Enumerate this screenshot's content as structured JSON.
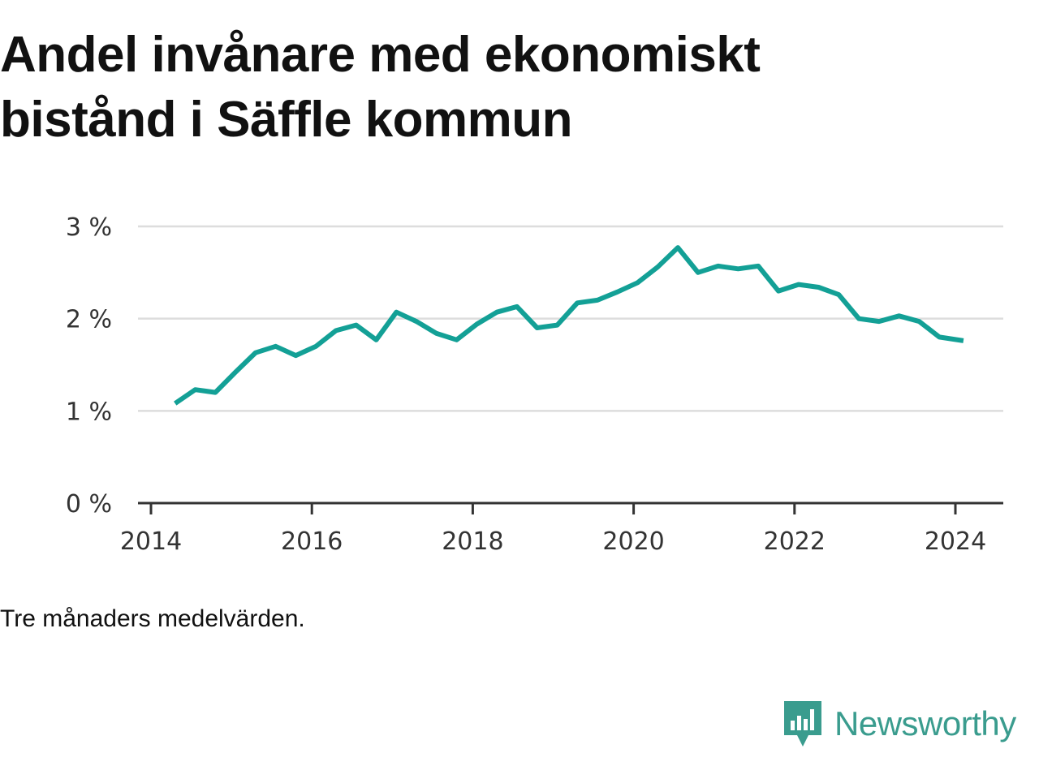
{
  "title": {
    "line1": "Andel invånare med ekonomiskt",
    "line2": "bistånd i Säffle kommun"
  },
  "note": "Tre månaders medelvärden.",
  "brand": {
    "name": "Newsworthy",
    "icon": "newsworthy-logo-icon",
    "color": "#3a9c8e"
  },
  "colors": {
    "line": "#13a096",
    "grid": "#dddddd",
    "axis": "#333333"
  },
  "chart_data": {
    "type": "line",
    "title": "Andel invånare med ekonomiskt bistånd i Säffle kommun",
    "xlabel": "",
    "ylabel": "",
    "xlim": [
      2014,
      2024.6
    ],
    "ylim": [
      0,
      3
    ],
    "x_ticks": [
      2014,
      2016,
      2018,
      2020,
      2022,
      2024
    ],
    "y_ticks": [
      0,
      1,
      2,
      3
    ],
    "y_tick_labels": [
      "0 %",
      "1 %",
      "2 %",
      "3 %"
    ],
    "grid": "horizontal",
    "series": [
      {
        "x": [
          2014.3,
          2014.55,
          2014.8,
          2015.05,
          2015.3,
          2015.55,
          2015.8,
          2016.05,
          2016.3,
          2016.55,
          2016.8,
          2017.05,
          2017.3,
          2017.55,
          2017.8,
          2018.05,
          2018.3,
          2018.55,
          2018.8,
          2019.05,
          2019.3,
          2019.55,
          2019.8,
          2020.05,
          2020.3,
          2020.55,
          2020.8,
          2021.05,
          2021.3,
          2021.55,
          2021.8,
          2022.05,
          2022.3,
          2022.55,
          2022.8,
          2023.05,
          2023.3,
          2023.55,
          2023.8,
          2024.1
        ],
        "values": [
          1.08,
          1.23,
          1.2,
          1.42,
          1.63,
          1.7,
          1.6,
          1.7,
          1.87,
          1.93,
          1.77,
          2.07,
          1.97,
          1.84,
          1.77,
          1.94,
          2.07,
          2.13,
          1.9,
          1.93,
          2.17,
          2.2,
          2.29,
          2.39,
          2.56,
          2.77,
          2.5,
          2.57,
          2.54,
          2.57,
          2.3,
          2.37,
          2.34,
          2.26,
          2.0,
          1.97,
          2.03,
          1.97,
          1.8,
          1.76
        ]
      }
    ]
  }
}
